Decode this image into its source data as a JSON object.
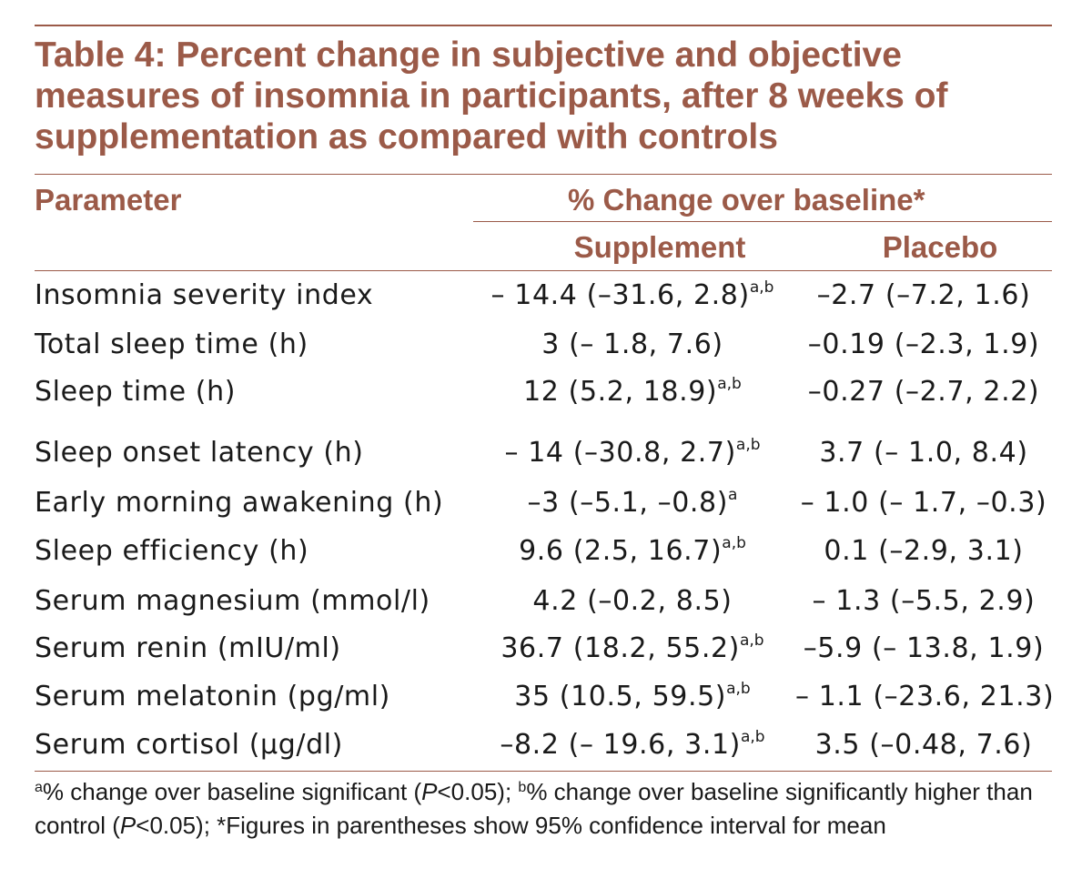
{
  "table": {
    "title": "Table 4: Percent change in subjective and objective measures of insomnia in participants, after 8 weeks of supplementation as compared with controls",
    "header": {
      "parameter": "Parameter",
      "group": "% Change over baseline*",
      "supplement": "Supplement",
      "placebo": "Placebo"
    },
    "rows": [
      {
        "parameter": "Insomnia severity index",
        "supplement": "– 14.4 (–31.6, 2.8)",
        "supplement_sup": "a,b",
        "placebo": "–2.7 (–7.2, 1.6)"
      },
      {
        "parameter": "Total sleep time (h)",
        "supplement": "3 (– 1.8, 7.6)",
        "supplement_sup": "",
        "placebo": "–0.19 (–2.3, 1.9)"
      },
      {
        "parameter": "Sleep time (h)",
        "supplement": "12 (5.2, 18.9)",
        "supplement_sup": "a,b",
        "placebo": "–0.27 (–2.7, 2.2)"
      },
      {
        "parameter": "Sleep onset latency (h)",
        "supplement": "– 14 (–30.8, 2.7)",
        "supplement_sup": "a,b",
        "placebo": "3.7 (– 1.0, 8.4)"
      },
      {
        "parameter": "Early morning awakening (h)",
        "supplement": "–3 (–5.1, –0.8)",
        "supplement_sup": "a",
        "placebo": "– 1.0 (– 1.7, –0.3)"
      },
      {
        "parameter": "Sleep efficiency (h)",
        "supplement": "9.6 (2.5, 16.7)",
        "supplement_sup": "a,b",
        "placebo": "0.1 (–2.9, 3.1)"
      },
      {
        "parameter": "Serum magnesium (mmol/l)",
        "supplement": "4.2 (–0.2, 8.5)",
        "supplement_sup": "",
        "placebo": "– 1.3 (–5.5, 2.9)"
      },
      {
        "parameter": "Serum renin (mIU/ml)",
        "supplement": "36.7 (18.2, 55.2)",
        "supplement_sup": "a,b",
        "placebo": "–5.9 (– 13.8, 1.9)"
      },
      {
        "parameter": "Serum melatonin (pg/ml)",
        "supplement": "35 (10.5, 59.5)",
        "supplement_sup": "a,b",
        "placebo": "– 1.1 (–23.6, 21.3)"
      },
      {
        "parameter": "Serum cortisol (μg/dl)",
        "supplement": "–8.2 (– 19.6, 3.1)",
        "supplement_sup": "a,b",
        "placebo": "3.5 (–0.48, 7.6)"
      }
    ],
    "footnote": {
      "sup_a": "a",
      "part1": "% change over baseline significant (",
      "p1": "P",
      "part2": "<0.05); ",
      "sup_b": "b",
      "part3": "% change over baseline significantly higher than control (",
      "p2": "P",
      "part4": "<0.05); *Figures in parentheses show 95% confidence interval for mean"
    },
    "colors": {
      "accent": "#9b5a48",
      "text": "#1a1a1a"
    }
  }
}
